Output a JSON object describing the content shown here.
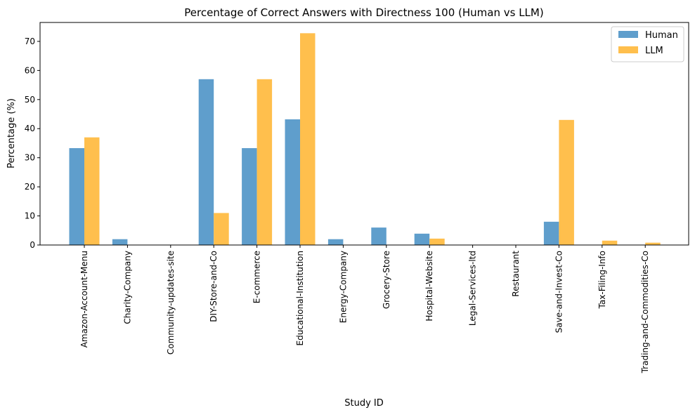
{
  "chart_data": {
    "type": "bar",
    "title": "Percentage of Correct Answers with Directness 100 (Human vs LLM)",
    "xlabel": "Study ID",
    "ylabel": "Percentage (%)",
    "ylim": [
      0,
      76.5
    ],
    "yticks": [
      0,
      10,
      20,
      30,
      40,
      50,
      60,
      70
    ],
    "grid": false,
    "legend_position": "top-right",
    "categories": [
      "Amazon-Account-Menu",
      "Charity-Company",
      "Community-updates-site",
      "DIY-Store-and-Co",
      "E-commerce",
      "Educational-Institution",
      "Energy-Company",
      "Grocery-Store",
      "Hospital-Website",
      "Legal-Services-ltd",
      "Restaurant",
      "Save-and-Invest-Co",
      "Tax-Filing-Info",
      "Trading-and-Commodities-Co"
    ],
    "series": [
      {
        "name": "Human",
        "color": "#5f9ecc",
        "values": [
          33.3,
          2.0,
          0,
          57.0,
          33.3,
          43.2,
          2.0,
          6.0,
          3.9,
          0,
          0,
          8.0,
          0,
          0
        ]
      },
      {
        "name": "LLM",
        "color": "#ffbf4d",
        "values": [
          37.0,
          0,
          0,
          11.0,
          57.0,
          72.8,
          0,
          0,
          2.2,
          0,
          0,
          43.0,
          1.5,
          0.8
        ]
      }
    ]
  }
}
